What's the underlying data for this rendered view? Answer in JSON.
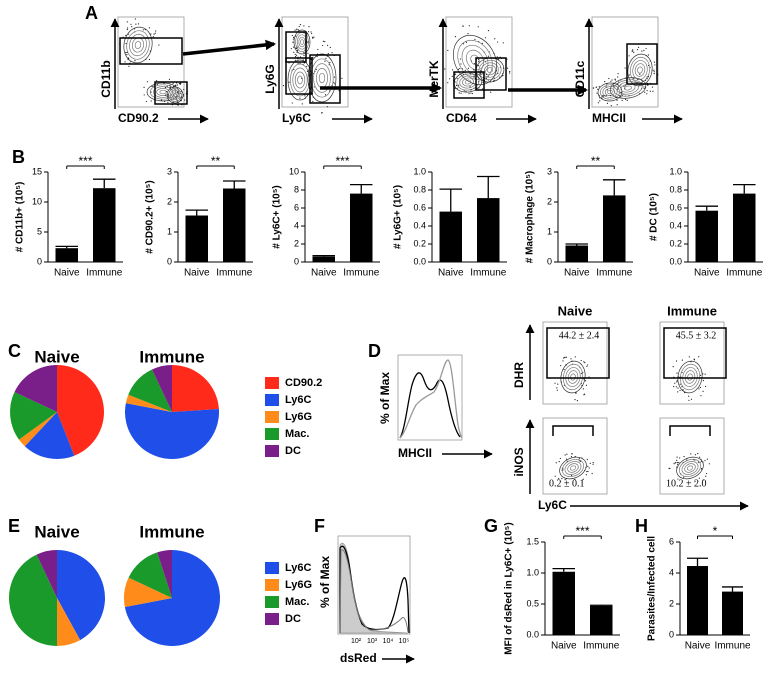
{
  "panel_labels": [
    "A",
    "B",
    "C",
    "D",
    "E",
    "F",
    "G",
    "H"
  ],
  "gating": [
    {
      "y_label": "CD11b",
      "x_label": "CD90.2"
    },
    {
      "y_label": "Ly6G",
      "x_label": "Ly6C"
    },
    {
      "y_label": "MerTK",
      "x_label": "CD64"
    },
    {
      "y_label": "CD11c",
      "x_label": "MHCII"
    }
  ],
  "chart_data": [
    {
      "type": "bar",
      "ylabel": "# CD11b+ (10⁵)",
      "categories": [
        "Naive",
        "Immune"
      ],
      "values": [
        2.3,
        12.3
      ],
      "errors": [
        0.3,
        1.5
      ],
      "color": "#000000",
      "ylim": [
        0,
        15
      ],
      "yticks": [
        0,
        5,
        10,
        15
      ],
      "significance": "***"
    },
    {
      "type": "bar",
      "ylabel": "# CD90.2+ (10⁵)",
      "categories": [
        "Naive",
        "Immune"
      ],
      "values": [
        1.55,
        2.45
      ],
      "errors": [
        0.18,
        0.25
      ],
      "color": "#000000",
      "ylim": [
        0,
        3
      ],
      "yticks": [
        0,
        1,
        2,
        3
      ],
      "significance": "**"
    },
    {
      "type": "bar",
      "ylabel": "# Ly6C+ (10⁵)",
      "categories": [
        "Naive",
        "Immune"
      ],
      "values": [
        0.6,
        7.6
      ],
      "errors": [
        0.1,
        1.0
      ],
      "color": "#000000",
      "ylim": [
        0,
        10
      ],
      "yticks": [
        0,
        2,
        4,
        6,
        8,
        10
      ],
      "significance": "***"
    },
    {
      "type": "bar",
      "ylabel": "# Ly6G+ (10⁵)",
      "categories": [
        "Naive",
        "Immune"
      ],
      "values": [
        0.56,
        0.71
      ],
      "errors": [
        0.25,
        0.24
      ],
      "color": "#000000",
      "ylim": [
        0,
        1
      ],
      "yticks": [
        {
          "value": 0,
          "label": "0.0"
        },
        0.2,
        0.4,
        0.6,
        0.8,
        {
          "value": 1,
          "label": "1.0"
        }
      ]
    },
    {
      "type": "bar",
      "ylabel": "# Macrophage (10⁵)",
      "categories": [
        "Naive",
        "Immune"
      ],
      "values": [
        0.55,
        2.22
      ],
      "errors": [
        0.05,
        0.52
      ],
      "color": "#000000",
      "ylim": [
        0,
        3
      ],
      "yticks": [
        0,
        1,
        2,
        3
      ],
      "significance": "**"
    },
    {
      "type": "bar",
      "ylabel": "# DC (10⁵)",
      "categories": [
        "Naive",
        "Immune"
      ],
      "values": [
        0.57,
        0.76
      ],
      "errors": [
        0.05,
        0.1
      ],
      "color": "#000000",
      "ylim": [
        0,
        1
      ],
      "yticks": [
        {
          "value": 0,
          "label": "0.0"
        },
        0.2,
        0.4,
        0.6,
        0.8,
        {
          "value": 1,
          "label": "1.0"
        }
      ]
    },
    {
      "type": "pie",
      "categories": [
        "CD90.2",
        "Ly6C",
        "Ly6G",
        "Mac.",
        "DC"
      ],
      "colors": [
        "#ff2a1a",
        "#1f4fe8",
        "#ff8c1a",
        "#1a9a2a",
        "#7a1f8a"
      ],
      "series": [
        {
          "name": "Naive",
          "values": [
            44,
            18,
            3,
            17,
            18
          ]
        },
        {
          "name": "Immune",
          "values": [
            24,
            54,
            3,
            12,
            7
          ]
        }
      ]
    },
    {
      "type": "pie",
      "categories": [
        "Ly6C",
        "Ly6G",
        "Mac.",
        "DC"
      ],
      "colors": [
        "#1f4fe8",
        "#ff8c1a",
        "#1a9a2a",
        "#7a1f8a"
      ],
      "series": [
        {
          "name": "Naive",
          "values": [
            42,
            8,
            43,
            7
          ]
        },
        {
          "name": "Immune",
          "values": [
            72,
            10,
            13,
            5
          ]
        }
      ]
    },
    {
      "type": "bar",
      "ylabel": "MFI of dsRed in Ly6C+ (10⁵)",
      "categories": [
        "Naive",
        "Immune"
      ],
      "values": [
        1.02,
        0.47
      ],
      "errors": [
        0.05,
        0.01
      ],
      "color": "#000000",
      "ylim": [
        0,
        1.5
      ],
      "yticks": [
        {
          "value": 0,
          "label": "0.0"
        },
        0.5,
        {
          "value": 1,
          "label": "1.0"
        },
        1.5
      ],
      "significance": "***"
    },
    {
      "type": "bar",
      "ylabel": "Parasites/Infected cell",
      "categories": [
        "Naive",
        "Immune"
      ],
      "values": [
        4.45,
        2.8
      ],
      "errors": [
        0.5,
        0.3
      ],
      "color": "#000000",
      "ylim": [
        0,
        6
      ],
      "yticks": [
        0,
        2,
        4,
        6
      ],
      "significance": "*"
    }
  ],
  "panel_d": {
    "histogram_y_label": "% of Max",
    "histogram_x_label": "MHCII",
    "columns": [
      "Naive",
      "Immune"
    ],
    "rows": [
      "DHR",
      "iNOS"
    ],
    "x_label": "Ly6C",
    "gates": [
      [
        "44.2 ± 2.4",
        "45.5 ± 3.2"
      ],
      [
        "0.2 ± 0.1",
        "10.2 ± 2.0"
      ]
    ]
  },
  "panel_f": {
    "y_label": "% of Max",
    "x_label": "dsRed",
    "x_tick_labels": [
      "10²",
      "10³",
      "10⁴",
      "10⁵"
    ]
  }
}
